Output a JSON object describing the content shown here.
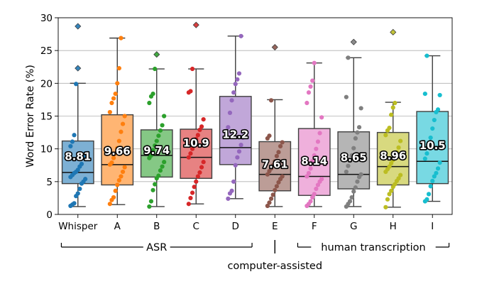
{
  "chart_data": {
    "type": "box",
    "ylabel": "Word Error Rate (%)",
    "xlabel": "",
    "ylim": [
      0,
      30
    ],
    "yticks": [
      0,
      5,
      10,
      15,
      20,
      25,
      30
    ],
    "grid": "horizontal",
    "categories": [
      "Whisper",
      "A",
      "B",
      "C",
      "D",
      "E",
      "F",
      "G",
      "H",
      "I"
    ],
    "colors": [
      "#1f77b4",
      "#ff7f0e",
      "#2ca02c",
      "#d62728",
      "#9467bd",
      "#8c564b",
      "#e377c2",
      "#7f7f7f",
      "#bcbd22",
      "#17becf"
    ],
    "boxes": [
      {
        "category": "Whisper",
        "q1": 4.7,
        "median": 6.4,
        "q3": 11.2,
        "whisker_low": 1.2,
        "whisker_high": 20.0,
        "outliers": [
          22.3,
          28.7
        ],
        "mean": 8.81,
        "mean_label": "8.81",
        "points": [
          1.3,
          1.5,
          1.7,
          2.8,
          3.2,
          3.9,
          4.7,
          5.0,
          5.4,
          5.7,
          6.0,
          6.3,
          6.5,
          6.8,
          7.3,
          7.7,
          8.7,
          9.3,
          10.4,
          11.1,
          12.1,
          19.9
        ]
      },
      {
        "category": "A",
        "q1": 4.5,
        "median": 7.6,
        "q3": 15.2,
        "whisker_low": 1.5,
        "whisker_high": 26.9,
        "outliers": [],
        "mean": 9.66,
        "mean_label": "9.66",
        "points": [
          1.6,
          2.2,
          2.6,
          3.6,
          4.5,
          5.2,
          5.8,
          6.5,
          7.2,
          7.6,
          7.9,
          8.6,
          9.3,
          10.1,
          11.2,
          12.6,
          13.8,
          15.0,
          15.6,
          17.0,
          17.7,
          18.4,
          20.0,
          22.3,
          26.9
        ]
      },
      {
        "category": "B",
        "q1": 5.7,
        "median": 9.0,
        "q3": 12.9,
        "whisker_low": 1.2,
        "whisker_high": 22.2,
        "outliers": [
          24.4
        ],
        "mean": 9.74,
        "mean_label": "9.74",
        "points": [
          1.2,
          2.0,
          3.7,
          4.6,
          5.5,
          5.9,
          6.7,
          7.3,
          8.0,
          8.6,
          9.0,
          9.8,
          10.5,
          11.2,
          12.0,
          12.8,
          13.6,
          15.0,
          17.0,
          18.0,
          18.4,
          22.2
        ]
      },
      {
        "category": "C",
        "q1": 5.5,
        "median": 8.7,
        "q3": 13.0,
        "whisker_low": 1.6,
        "whisker_high": 22.2,
        "outliers": [
          28.9
        ],
        "mean": 10.9,
        "mean_label": "10.9",
        "points": [
          1.6,
          2.5,
          3.3,
          4.2,
          5.0,
          5.8,
          6.4,
          7.2,
          8.0,
          8.7,
          9.3,
          10.0,
          10.8,
          11.5,
          12.1,
          12.9,
          13.4,
          14.5,
          18.6,
          18.8,
          22.2
        ]
      },
      {
        "category": "D",
        "q1": 7.6,
        "median": 10.2,
        "q3": 18.0,
        "whisker_low": 2.4,
        "whisker_high": 27.2,
        "outliers": [],
        "mean": 12.2,
        "mean_label": "12.2",
        "points": [
          2.4,
          3.2,
          3.6,
          5.0,
          7.5,
          8.7,
          9.6,
          10.6,
          11.7,
          13.3,
          15.5,
          17.4,
          18.6,
          19.9,
          20.6,
          21.5,
          27.2
        ]
      },
      {
        "category": "E",
        "q1": 3.6,
        "median": 6.1,
        "q3": 11.1,
        "whisker_low": 1.2,
        "whisker_high": 17.5,
        "outliers": [
          25.5
        ],
        "mean": 7.61,
        "mean_label": "7.61",
        "points": [
          1.3,
          1.8,
          2.4,
          3.0,
          3.7,
          4.3,
          4.9,
          5.4,
          5.8,
          6.1,
          6.6,
          7.0,
          7.5,
          8.1,
          8.9,
          9.5,
          10.4,
          11.0,
          11.6,
          12.0,
          17.4
        ]
      },
      {
        "category": "F",
        "q1": 2.9,
        "median": 5.8,
        "q3": 13.1,
        "whisker_low": 1.2,
        "whisker_high": 23.1,
        "outliers": [],
        "mean": 8.14,
        "mean_label": "8.14",
        "points": [
          1.3,
          1.6,
          2.0,
          2.6,
          3.1,
          3.9,
          4.5,
          5.0,
          5.4,
          5.8,
          6.3,
          7.0,
          8.1,
          9.0,
          10.0,
          11.1,
          12.4,
          14.8,
          17.0,
          18.6,
          19.5,
          20.4,
          23.1
        ]
      },
      {
        "category": "G",
        "q1": 3.9,
        "median": 6.1,
        "q3": 12.6,
        "whisker_low": 1.2,
        "whisker_high": 23.9,
        "outliers": [
          26.3
        ],
        "mean": 8.65,
        "mean_label": "8.65",
        "points": [
          1.2,
          1.6,
          2.0,
          2.6,
          3.5,
          4.1,
          5.0,
          5.7,
          6.1,
          6.5,
          7.4,
          8.2,
          9.0,
          10.1,
          11.6,
          12.5,
          13.3,
          16.2,
          17.9,
          23.9
        ]
      },
      {
        "category": "H",
        "q1": 4.5,
        "median": 7.3,
        "q3": 12.5,
        "whisker_low": 1.1,
        "whisker_high": 17.1,
        "outliers": [
          27.8
        ],
        "mean": 8.96,
        "mean_label": "8.96",
        "points": [
          1.1,
          2.3,
          3.1,
          3.6,
          4.2,
          4.6,
          5.1,
          5.5,
          6.0,
          6.5,
          6.9,
          7.3,
          7.8,
          8.3,
          8.8,
          9.5,
          10.2,
          11.2,
          12.1,
          12.8,
          13.2,
          15.2,
          16.3,
          17.0
        ]
      },
      {
        "category": "I",
        "q1": 4.7,
        "median": 8.1,
        "q3": 15.7,
        "whisker_low": 2.0,
        "whisker_high": 24.2,
        "outliers": [],
        "mean": 10.5,
        "mean_label": "10.5",
        "points": [
          2.0,
          2.3,
          3.1,
          4.3,
          5.1,
          5.8,
          6.3,
          7.0,
          7.9,
          8.5,
          9.3,
          10.2,
          11.7,
          13.1,
          14.4,
          15.6,
          16.0,
          18.2,
          18.4,
          24.2
        ]
      }
    ],
    "groups": [
      {
        "label": "ASR",
        "from": "Whisper",
        "to": "D",
        "row": 1
      },
      {
        "label": "computer-assisted",
        "from": "E",
        "to": "E",
        "row": 2
      },
      {
        "label": "human transcription",
        "from": "F",
        "to": "I",
        "row": 1
      }
    ]
  }
}
